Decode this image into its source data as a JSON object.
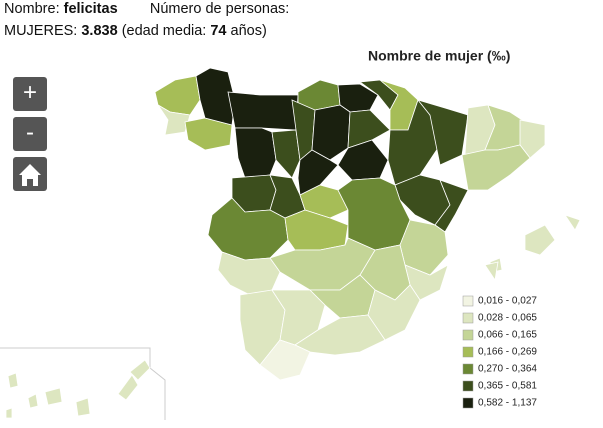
{
  "header": {
    "name_label": "Nombre:",
    "name_value": "felicitas",
    "count_label": "Número de personas:",
    "women_label": "MUJERES:",
    "women_value": "3.838",
    "age_open": "(edad media:",
    "age_value": "74",
    "age_close": "años)"
  },
  "controls": {
    "zoom_in": "+",
    "zoom_out": "-"
  },
  "legend": {
    "title": "Nombre de mujer (‰)",
    "items": [
      {
        "label": "0,016 - 0,027",
        "color": "#f2f4e3"
      },
      {
        "label": "0,028 - 0,065",
        "color": "#dde6c0"
      },
      {
        "label": "0,066 - 0,165",
        "color": "#c4d597"
      },
      {
        "label": "0,166 - 0,269",
        "color": "#a6bd57"
      },
      {
        "label": "0,270 - 0,364",
        "color": "#6b8834"
      },
      {
        "label": "0,365 - 0,581",
        "color": "#3c4e1d"
      },
      {
        "label": "0,582 - 1,137",
        "color": "#1a200f"
      }
    ]
  }
}
